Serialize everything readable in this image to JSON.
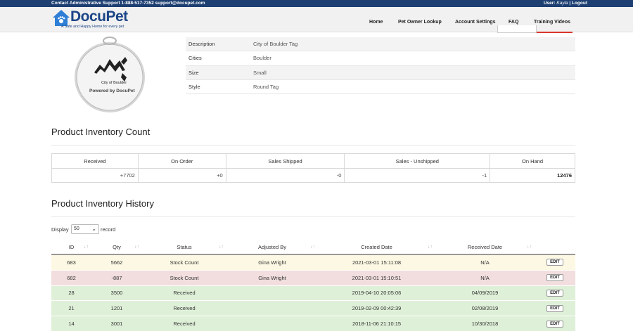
{
  "topbar": {
    "support": "Contact Administrative Support 1-888-517-7352 support@docupet.com",
    "user_prefix": "User: ",
    "user_name": "Kayla",
    "sep": " | ",
    "logout": "Logout"
  },
  "logo": {
    "name": "DocuPet",
    "tagline": "A Safe and Happy Home for every pet"
  },
  "nav": {
    "home": "Home",
    "lookup": "Pet Owner Lookup",
    "account": "Account Settings",
    "faq": "FAQ",
    "training": "Training Videos"
  },
  "tag": {
    "city": "City of Boulder",
    "powered": "Powered by DocuPet"
  },
  "details": [
    {
      "key": "Description",
      "value": "City of Boulder Tag"
    },
    {
      "key": "Cities",
      "value": "Boulder"
    },
    {
      "key": "Size",
      "value": "Small"
    },
    {
      "key": "Style",
      "value": "Round Tag"
    }
  ],
  "inventory_count": {
    "title": "Product Inventory Count",
    "headers": [
      "Received",
      "On Order",
      "Sales Shipped",
      "Sales - Unshipped",
      "On Hand"
    ],
    "values": [
      "+7702",
      "+0",
      "-0",
      "-1",
      "12476"
    ]
  },
  "history": {
    "title": "Product Inventory History",
    "display_label": "Display",
    "display_value": "50",
    "record_label": "record",
    "headers": [
      "ID",
      "Qty",
      "Status",
      "Adjusted By",
      "Created Date",
      "Received Date",
      ""
    ],
    "edit_label": "EDIT",
    "rows": [
      {
        "id": "683",
        "qty": "5662",
        "status": "Stock Count",
        "by": "Gina Wright",
        "created": "2021-03-01 15:11:08",
        "received": "N/A",
        "color": "#fcf8e3"
      },
      {
        "id": "682",
        "qty": "-887",
        "status": "Stock Count",
        "by": "Gina Wright",
        "created": "2021-03-01 15:10:51",
        "received": "N/A",
        "color": "#f2dede"
      },
      {
        "id": "28",
        "qty": "3500",
        "status": "Received",
        "by": "",
        "created": "2019-04-10 20:05:06",
        "received": "04/09/2019",
        "color": "#dff0d8"
      },
      {
        "id": "21",
        "qty": "1201",
        "status": "Received",
        "by": "",
        "created": "2019-02-09 00:42:39",
        "received": "02/08/2019",
        "color": "#dff0d8"
      },
      {
        "id": "14",
        "qty": "3001",
        "status": "Received",
        "by": "",
        "created": "2018-11-06 21:10:15",
        "received": "10/30/2018",
        "color": "#dff0d8"
      }
    ]
  },
  "colors": {
    "topbar": "#1d3f72",
    "brand": "#1c4587",
    "accent": "#d9362b"
  }
}
